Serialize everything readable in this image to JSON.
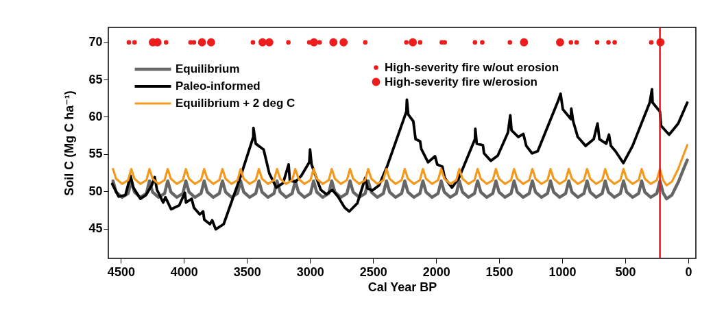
{
  "chart_data": {
    "type": "line",
    "xlabel": "Cal Year BP",
    "ylabel": "Soil C (Mg C ha⁻¹)",
    "xlim": [
      4600,
      -60
    ],
    "ylim": [
      41,
      72
    ],
    "xticks": [
      4500,
      4000,
      3500,
      3000,
      2500,
      2000,
      1500,
      1000,
      500,
      0
    ],
    "yticks": [
      45,
      50,
      55,
      60,
      65,
      70
    ],
    "grid": false,
    "legend": "top",
    "ref_lines": [
      {
        "axis": "x",
        "value": 225,
        "color": "#e8141a"
      }
    ],
    "x": [
      4563,
      4538,
      4491,
      4443,
      4418,
      4393,
      4346,
      4298,
      4274,
      4249,
      4202,
      4154,
      4129,
      4104,
      4057,
      4009,
      3985,
      3960,
      3913,
      3865,
      3840,
      3815,
      3768,
      3720,
      3695,
      3670,
      3623,
      3575,
      3551,
      3526,
      3479,
      3431,
      3406,
      3381,
      3334,
      3286,
      3262,
      3237,
      3190,
      3142,
      3117,
      3092,
      3045,
      2997,
      2972,
      2947,
      2900,
      2852,
      2828,
      2803,
      2756,
      2708,
      2683,
      2658,
      2611,
      2563,
      2539,
      2514,
      2467,
      2419,
      2394,
      2369,
      2322,
      2274,
      2249,
      2224,
      2177,
      2129,
      2105,
      2080,
      2033,
      1985,
      1960,
      1935,
      1888,
      1840,
      1816,
      1791,
      1744,
      1696,
      1671,
      1646,
      1599,
      1551,
      1526,
      1501,
      1454,
      1406,
      1382,
      1357,
      1310,
      1262,
      1237,
      1212,
      1165,
      1117,
      1093,
      1068,
      1021,
      973,
      948,
      923,
      876,
      828,
      803,
      778,
      731,
      683,
      659,
      634,
      587,
      539,
      514,
      489,
      442,
      394,
      370,
      345,
      298,
      250,
      225,
      200,
      172,
      130,
      80,
      40,
      8
    ],
    "series": [
      {
        "name": "Equilibrium",
        "type": "line",
        "color": "#666666",
        "values": [
          51.4,
          49.9,
          49.2,
          49.7,
          51.4,
          49.9,
          49.2,
          49.7,
          51.4,
          49.9,
          49.2,
          49.7,
          51.4,
          49.9,
          49.2,
          49.7,
          51.4,
          49.9,
          49.2,
          49.7,
          51.4,
          49.9,
          49.2,
          49.7,
          51.4,
          49.9,
          49.2,
          49.7,
          51.4,
          49.9,
          49.2,
          49.7,
          51.4,
          49.9,
          49.2,
          49.7,
          51.4,
          49.9,
          49.2,
          49.7,
          51.4,
          49.9,
          49.2,
          49.7,
          51.4,
          49.9,
          49.2,
          49.7,
          51.4,
          49.9,
          49.2,
          49.7,
          51.4,
          49.9,
          49.2,
          49.7,
          51.4,
          49.9,
          49.2,
          49.7,
          51.4,
          49.9,
          49.2,
          49.7,
          51.4,
          49.9,
          49.2,
          49.7,
          51.4,
          49.9,
          49.2,
          49.7,
          51.4,
          49.9,
          49.2,
          49.7,
          51.4,
          49.9,
          49.2,
          49.7,
          51.4,
          49.9,
          49.2,
          49.7,
          51.4,
          49.9,
          49.2,
          49.7,
          51.4,
          49.9,
          49.2,
          49.7,
          51.4,
          49.9,
          49.2,
          49.7,
          51.4,
          49.9,
          49.2,
          49.7,
          51.4,
          49.9,
          49.2,
          49.7,
          51.4,
          49.9,
          49.2,
          49.7,
          51.4,
          49.9,
          49.2,
          49.7,
          51.4,
          49.9,
          49.2,
          49.7,
          51.4,
          49.9,
          49.2,
          49.7,
          51.4,
          49.8,
          49.0,
          49.5,
          51.2,
          52.9,
          54.2
        ]
      },
      {
        "name": "Paleo-informed",
        "type": "line",
        "color": "#000000",
        "x": [
          4569,
          4518,
          4464,
          4424,
          4401,
          4346,
          4301,
          4256,
          4232,
          4214,
          4165,
          4147,
          4102,
          4038,
          3993,
          3984,
          3939,
          3921,
          3875,
          3848,
          3839,
          3794,
          3776,
          3748,
          3685,
          3549,
          3450,
          3449,
          3431,
          3368,
          3323,
          3268,
          3214,
          3170,
          3160,
          3114,
          3069,
          3006,
          3000,
          2988,
          2915,
          2870,
          2824,
          2779,
          2725,
          2689,
          2625,
          2562,
          2544,
          2507,
          2453,
          2390,
          2236,
          2232,
          2221,
          2181,
          2163,
          2127,
          2118,
          2064,
          2009,
          1991,
          1950,
          1932,
          1874,
          1819,
          1692,
          1689,
          1678,
          1629,
          1620,
          1566,
          1511,
          1430,
          1412,
          1402,
          1348,
          1308,
          1285,
          1239,
          1194,
          1031,
          1013,
          995,
          931,
          928,
          913,
          877,
          814,
          750,
          720,
          705,
          651,
          629,
          614,
          578,
          515,
          442,
          306,
          288,
          283,
          225,
          216,
          152,
          80,
          8
        ],
        "values": [
          51.0,
          49.3,
          49.5,
          52.1,
          50.5,
          49.0,
          49.5,
          50.8,
          51.9,
          50.2,
          48.5,
          49.2,
          47.6,
          48.1,
          49.8,
          48.5,
          49.0,
          47.8,
          46.9,
          47.3,
          46.2,
          45.6,
          46.1,
          44.9,
          45.6,
          52.1,
          57.3,
          58.5,
          56.4,
          55.6,
          52.4,
          50.5,
          51.1,
          53.6,
          51.4,
          51.3,
          52.1,
          53.9,
          55.6,
          53.6,
          50.2,
          49.6,
          50.2,
          49.3,
          47.8,
          47.3,
          48.4,
          51.8,
          50.4,
          50.1,
          50.8,
          53.3,
          60.7,
          62.3,
          60.3,
          59.4,
          57.0,
          56.7,
          55.7,
          53.9,
          54.7,
          53.6,
          53.3,
          51.8,
          50.5,
          51.8,
          57.0,
          58.4,
          56.4,
          56.2,
          55.1,
          54.1,
          54.8,
          57.9,
          60.2,
          58.2,
          57.3,
          57.7,
          56.1,
          55.1,
          55.4,
          62.2,
          63.1,
          61.0,
          59.7,
          61.1,
          59.4,
          57.3,
          56.1,
          57.0,
          59.1,
          57.0,
          56.4,
          57.6,
          56.1,
          55.4,
          53.8,
          56.1,
          61.9,
          63.7,
          61.9,
          60.7,
          58.8,
          57.6,
          59.1,
          61.9
        ]
      },
      {
        "name": "Equilibrium + 2 deg C",
        "type": "line",
        "color": "#f39a1e",
        "values": [
          53.0,
          51.7,
          51.0,
          51.5,
          53.0,
          51.7,
          51.0,
          51.5,
          53.0,
          51.7,
          51.0,
          51.5,
          53.0,
          51.7,
          51.0,
          51.5,
          53.0,
          51.7,
          51.0,
          51.5,
          53.0,
          51.7,
          51.0,
          51.5,
          53.0,
          51.7,
          51.0,
          51.5,
          53.0,
          51.7,
          51.0,
          51.5,
          53.0,
          51.7,
          51.0,
          51.5,
          53.0,
          51.7,
          51.0,
          51.5,
          53.0,
          51.7,
          51.0,
          51.5,
          53.0,
          51.7,
          51.0,
          51.5,
          53.0,
          51.7,
          51.0,
          51.5,
          53.0,
          51.7,
          51.0,
          51.5,
          53.0,
          51.7,
          51.0,
          51.5,
          53.0,
          51.7,
          51.0,
          51.5,
          53.0,
          51.7,
          51.0,
          51.5,
          53.0,
          51.7,
          51.0,
          51.5,
          53.0,
          51.7,
          51.0,
          51.5,
          53.0,
          51.7,
          51.0,
          51.5,
          53.0,
          51.7,
          51.0,
          51.5,
          53.0,
          51.7,
          51.0,
          51.5,
          53.0,
          51.7,
          51.0,
          51.5,
          53.0,
          51.7,
          51.0,
          51.5,
          53.0,
          51.7,
          51.0,
          51.5,
          53.0,
          51.7,
          51.0,
          51.5,
          53.0,
          51.7,
          51.0,
          51.5,
          53.0,
          51.7,
          51.0,
          51.5,
          53.0,
          51.7,
          51.0,
          51.5,
          53.0,
          51.7,
          51.0,
          51.5,
          53.0,
          51.5,
          50.8,
          51.3,
          53.0,
          54.8,
          56.2
        ]
      },
      {
        "name": "High-severity fire w/out erosion",
        "type": "scatter",
        "color": "#ee1c1c",
        "x": [
          4437,
          4392,
          4142,
          3948,
          3921,
          3453,
          3172,
          3006,
          2924,
          2562,
          2236,
          2127,
          1955,
          1932,
          1692,
          1634,
          1415,
          931,
          886,
          723,
          633,
          584,
          294
        ],
        "values": [
          70,
          70,
          70,
          70,
          70,
          70,
          70,
          70,
          70,
          70,
          70,
          70,
          70,
          70,
          70,
          70,
          70,
          70,
          70,
          70,
          70,
          70,
          70
        ]
      },
      {
        "name": "High-severity fire w/erosion",
        "type": "scatter",
        "color": "#ee1c1c",
        "x": [
          4247,
          4210,
          3857,
          3785,
          3377,
          3323,
          2969,
          2815,
          2734,
          2185,
          1303,
          1017,
          221
        ],
        "values": [
          70,
          70,
          70,
          70,
          70,
          70,
          70,
          70,
          70,
          70,
          70,
          70,
          70
        ]
      }
    ]
  }
}
